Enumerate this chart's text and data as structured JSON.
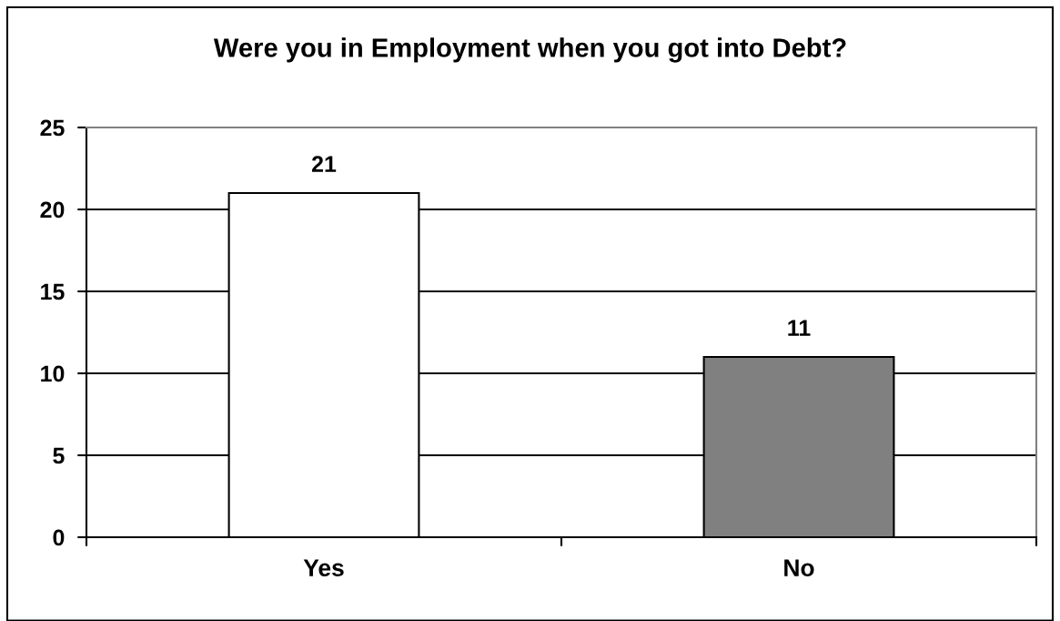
{
  "chart_data": {
    "type": "bar",
    "title": "Were you in Employment when you got into Debt?",
    "categories": [
      "Yes",
      "No"
    ],
    "values": [
      21,
      11
    ],
    "colors": [
      "#ffffff",
      "#808080"
    ],
    "ylim": [
      0,
      25
    ],
    "yticks": [
      0,
      5,
      10,
      15,
      20,
      25
    ],
    "grid": "y",
    "data_labels": true
  }
}
